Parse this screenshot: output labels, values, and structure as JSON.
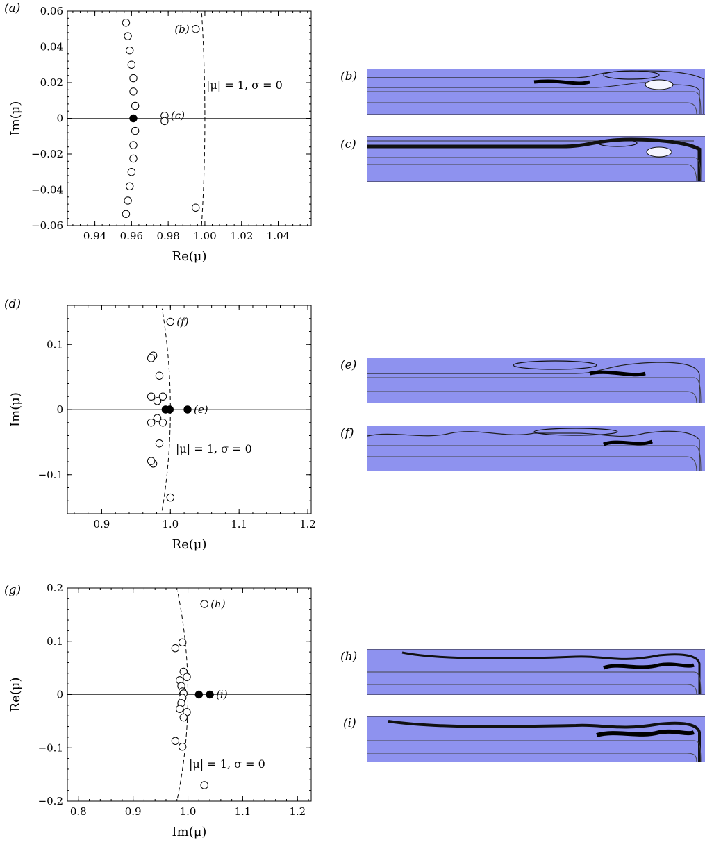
{
  "panels": {
    "a": {
      "label": "(a)",
      "annotation": "|μ| = 1, σ = 0"
    },
    "d": {
      "label": "(d)",
      "annotation": "|μ| = 1, σ = 0"
    },
    "g": {
      "label": "(g)",
      "annotation": "|μ| = 1, σ = 0"
    }
  },
  "flow_labels": {
    "b": "(b)",
    "c": "(c)",
    "e": "(e)",
    "f": "(f)",
    "h": "(h)",
    "i": "(i)"
  },
  "colors": {
    "flow_background": "#8e92ef",
    "streamline": "#202020",
    "axis": "#000000"
  },
  "chart_data": [
    {
      "type": "scatter",
      "panel": "a",
      "xlabel": "Re(μ)",
      "ylabel": "Im(μ)",
      "xlim": [
        0.925,
        1.058
      ],
      "ylim": [
        -0.06,
        0.06
      ],
      "xticks": [
        "0.94",
        "0.96",
        "0.98",
        "1.00",
        "1.02",
        "1.04"
      ],
      "yticks": [
        "0.06",
        "0.04",
        "0.02",
        "0",
        "−0.02",
        "−0.04",
        "−0.06"
      ],
      "xtick_values": [
        0.94,
        0.96,
        0.98,
        1.0,
        1.02,
        1.04
      ],
      "ytick_values": [
        0.06,
        0.04,
        0.02,
        0,
        -0.02,
        -0.04,
        -0.06
      ],
      "open_points": [
        [
          0.957,
          0.0535
        ],
        [
          0.958,
          0.046
        ],
        [
          0.959,
          0.038
        ],
        [
          0.96,
          0.03
        ],
        [
          0.961,
          0.0225
        ],
        [
          0.961,
          0.015
        ],
        [
          0.962,
          0.007
        ],
        [
          0.962,
          -0.007
        ],
        [
          0.961,
          -0.015
        ],
        [
          0.961,
          -0.0225
        ],
        [
          0.96,
          -0.03
        ],
        [
          0.959,
          -0.038
        ],
        [
          0.958,
          -0.046
        ],
        [
          0.957,
          -0.0535
        ],
        [
          0.978,
          0.0015
        ],
        [
          0.978,
          -0.0015
        ],
        [
          0.995,
          0.05
        ],
        [
          0.995,
          -0.05
        ]
      ],
      "filled_points": [
        [
          0.961,
          0.0
        ]
      ],
      "unit_circle_ymax": 0.06,
      "point_labels": [
        {
          "text": "(b)",
          "x": 0.995,
          "y": 0.05
        },
        {
          "text": "(c)",
          "x": 0.978,
          "y": 0.0015
        }
      ]
    },
    {
      "type": "scatter",
      "panel": "d",
      "xlabel": "Re(μ)",
      "ylabel": "Im(μ)",
      "xlim": [
        0.85,
        1.205
      ],
      "ylim": [
        -0.16,
        0.16
      ],
      "xticks": [
        "0.9",
        "1.0",
        "1.1",
        "1.2"
      ],
      "yticks": [
        "0.1",
        "0",
        "−0.1"
      ],
      "xtick_values": [
        0.9,
        1.0,
        1.1,
        1.2
      ],
      "ytick_values": [
        0.1,
        0,
        -0.1
      ],
      "open_points": [
        [
          1.0,
          0.135
        ],
        [
          0.975,
          0.083
        ],
        [
          0.972,
          0.079
        ],
        [
          0.984,
          0.052
        ],
        [
          0.972,
          0.02
        ],
        [
          0.981,
          0.013
        ],
        [
          0.989,
          0.02
        ],
        [
          0.972,
          -0.02
        ],
        [
          0.981,
          -0.013
        ],
        [
          0.989,
          -0.02
        ],
        [
          0.984,
          -0.052
        ],
        [
          0.975,
          -0.083
        ],
        [
          0.972,
          -0.079
        ],
        [
          1.0,
          -0.135
        ]
      ],
      "filled_points": [
        [
          0.993,
          0.0
        ],
        [
          0.999,
          0.0
        ],
        [
          1.025,
          0.0
        ]
      ],
      "unit_circle_ymax": 0.155,
      "point_labels": [
        {
          "text": "(f)",
          "x": 1.0,
          "y": 0.135
        },
        {
          "text": "(e)",
          "x": 1.025,
          "y": 0.0
        }
      ]
    },
    {
      "type": "scatter",
      "panel": "g",
      "xlabel": "Im(μ)",
      "ylabel": "Re(μ)",
      "xlim": [
        0.78,
        1.225
      ],
      "ylim": [
        -0.2,
        0.2
      ],
      "xticks": [
        "0.8",
        "0.9",
        "1.0",
        "1.1",
        "1.2"
      ],
      "yticks": [
        "0.2",
        "0.1",
        "0",
        "−0.1",
        "−0.2"
      ],
      "xtick_values": [
        0.8,
        0.9,
        1.0,
        1.1,
        1.2
      ],
      "ytick_values": [
        0.2,
        0.1,
        0,
        -0.1,
        -0.2
      ],
      "open_points": [
        [
          1.03,
          0.17
        ],
        [
          0.99,
          0.098
        ],
        [
          0.977,
          0.087
        ],
        [
          0.992,
          0.043
        ],
        [
          0.998,
          0.033
        ],
        [
          0.985,
          0.027
        ],
        [
          0.988,
          0.016
        ],
        [
          0.99,
          0.006
        ],
        [
          0.992,
          0.002
        ],
        [
          0.99,
          -0.006
        ],
        [
          0.988,
          -0.016
        ],
        [
          0.985,
          -0.027
        ],
        [
          0.998,
          -0.033
        ],
        [
          0.992,
          -0.043
        ],
        [
          0.977,
          -0.087
        ],
        [
          0.99,
          -0.098
        ],
        [
          1.03,
          -0.17
        ]
      ],
      "filled_points": [
        [
          1.02,
          0.0
        ],
        [
          1.04,
          0.0
        ]
      ],
      "unit_circle_ymax": 0.195,
      "point_labels": [
        {
          "text": "(h)",
          "x": 1.03,
          "y": 0.17
        },
        {
          "text": "(i)",
          "x": 1.04,
          "y": 0.0
        }
      ]
    }
  ]
}
